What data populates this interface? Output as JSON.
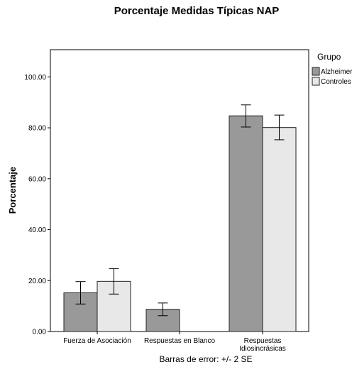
{
  "chart_data": {
    "type": "bar",
    "title": "Porcentaje Medidas Típicas NAP",
    "ylabel": "Porcentaje",
    "xlabel": "",
    "ylim": [
      0,
      110
    ],
    "yticks": [
      "0.00",
      "20.00",
      "40.00",
      "60.00",
      "80.00",
      "100.00"
    ],
    "categories": [
      [
        "Fuerza de Asociación"
      ],
      [
        "Respuestas en Blanco"
      ],
      [
        "Respuestas",
        "Idiosincrásicas"
      ]
    ],
    "legend_title": "Grupo",
    "legend_position": "top-right",
    "series": [
      {
        "name": "Alzheimer",
        "color": "#999999",
        "values": [
          15.2,
          8.7,
          84.7
        ],
        "err_low": [
          10.8,
          6.2,
          80.3
        ],
        "err_high": [
          19.6,
          11.2,
          89.0
        ]
      },
      {
        "name": "Controles",
        "color": "#e8e8e8",
        "values": [
          19.7,
          0,
          80.1
        ],
        "err_low": [
          14.7,
          null,
          75.3
        ],
        "err_high": [
          24.7,
          null,
          85.0
        ]
      }
    ],
    "footnote": "Barras de error: +/- 2 SE"
  }
}
